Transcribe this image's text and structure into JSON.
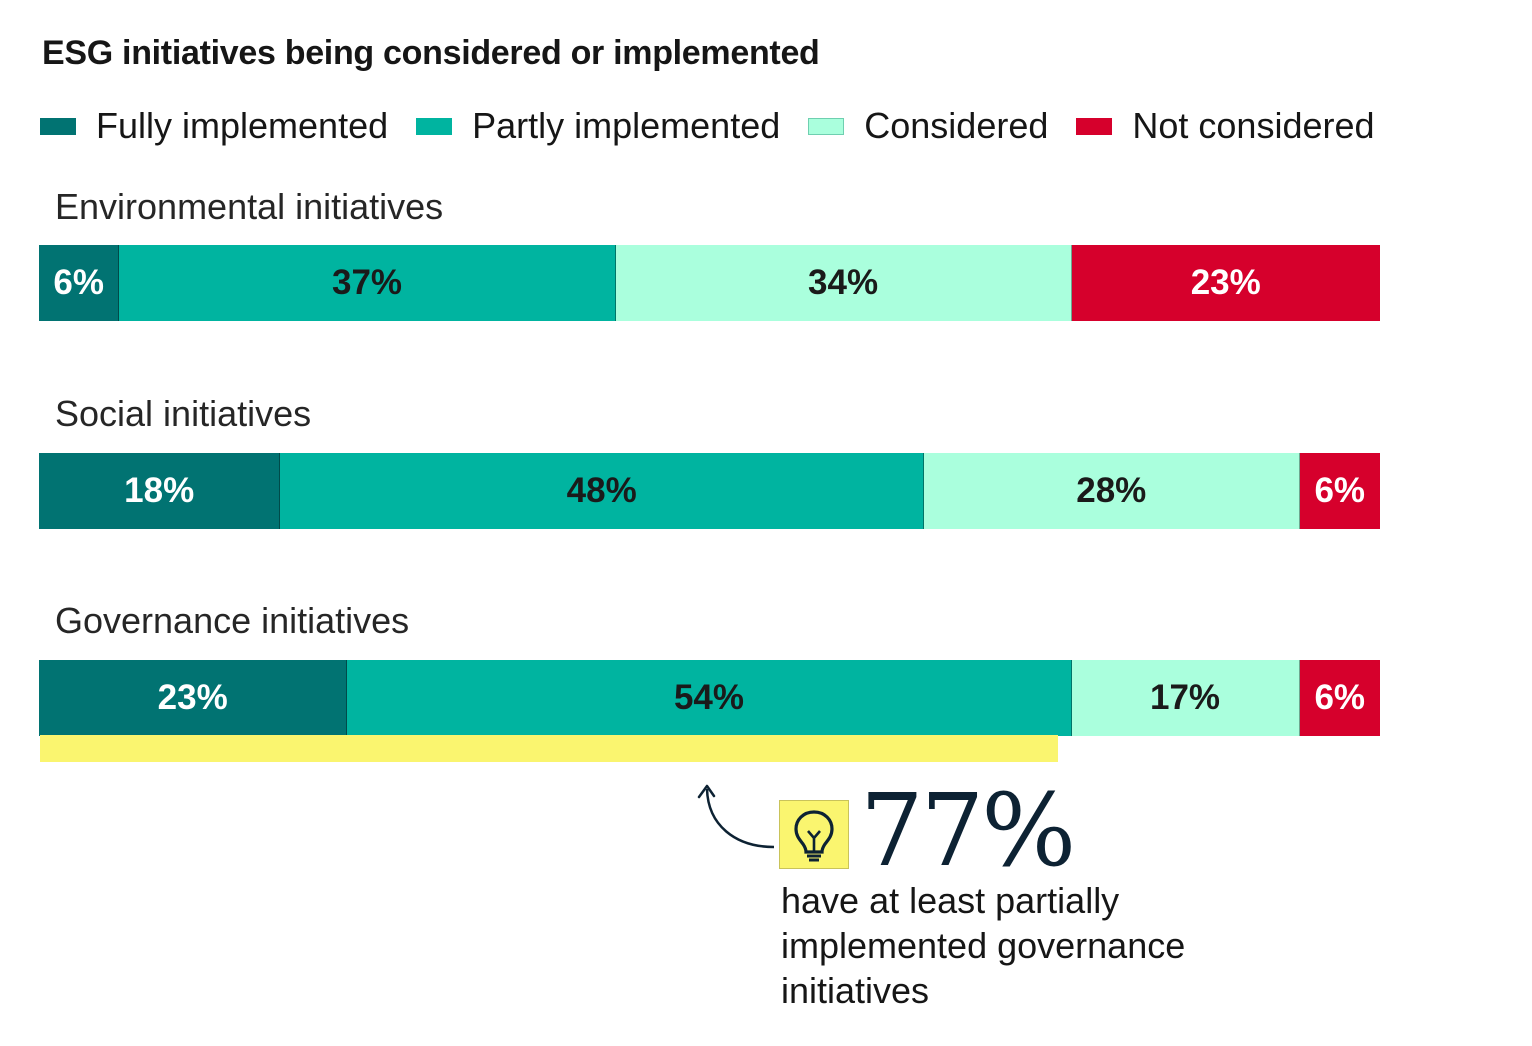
{
  "chart_data": {
    "type": "bar",
    "orientation": "horizontal",
    "stacked": true,
    "title": "ESG initiatives being considered or implemented",
    "categories": [
      "Environmental initiatives",
      "Social initiatives",
      "Governance initiatives"
    ],
    "series": [
      {
        "name": "Fully implemented",
        "color": "#017372",
        "text_color": "#ffffff",
        "values": [
          6,
          18,
          23
        ]
      },
      {
        "name": "Partly implemented",
        "color": "#00b4a0",
        "text_color": "#1a1a1a",
        "values": [
          37,
          48,
          54
        ]
      },
      {
        "name": "Considered",
        "color": "#aaffdd",
        "text_color": "#1a1a1a",
        "values": [
          34,
          28,
          17
        ]
      },
      {
        "name": "Not considered",
        "color": "#d6002c",
        "text_color": "#ffffff",
        "values": [
          23,
          6,
          6
        ]
      }
    ],
    "value_suffix": "%",
    "xlim": [
      0,
      100
    ],
    "legend_position": "top",
    "grid": false
  },
  "callout": {
    "stat": "77%",
    "description": "have at least partially implemented governance initiatives",
    "icon": "lightbulb-icon",
    "highlight_color": "#faf56f"
  }
}
